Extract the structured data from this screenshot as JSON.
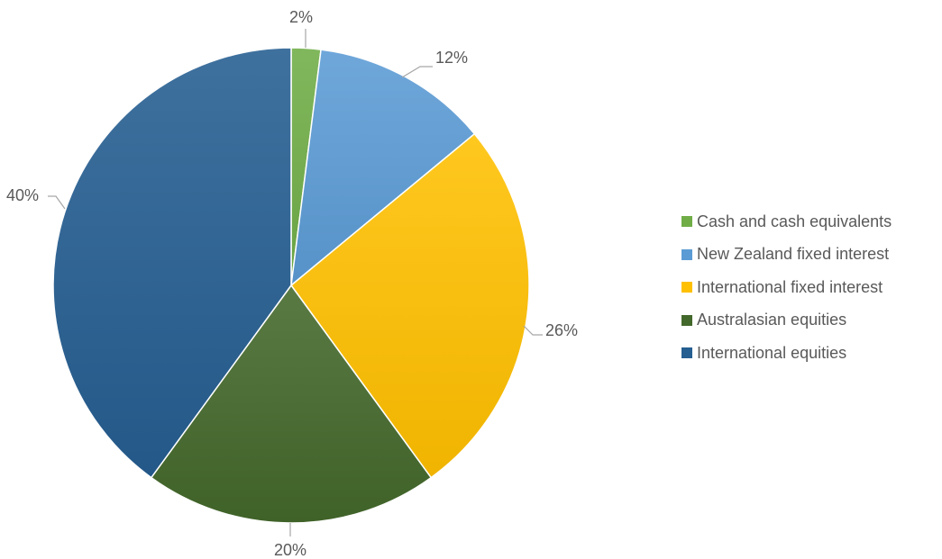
{
  "chart_data": {
    "type": "pie",
    "title": "",
    "legend_position": "right",
    "slices": [
      {
        "label": "Cash and cash equivalents",
        "value": 2,
        "display": "2%",
        "color": "#70ad47"
      },
      {
        "label": "New Zealand fixed interest",
        "value": 12,
        "display": "12%",
        "color": "#5b9bd5"
      },
      {
        "label": "International fixed interest",
        "value": 26,
        "display": "26%",
        "color": "#ffc000"
      },
      {
        "label": "Australasian equities",
        "value": 20,
        "display": "20%",
        "color": "#43682b"
      },
      {
        "label": "International equities",
        "value": 40,
        "display": "40%",
        "color": "#255e91"
      }
    ]
  }
}
